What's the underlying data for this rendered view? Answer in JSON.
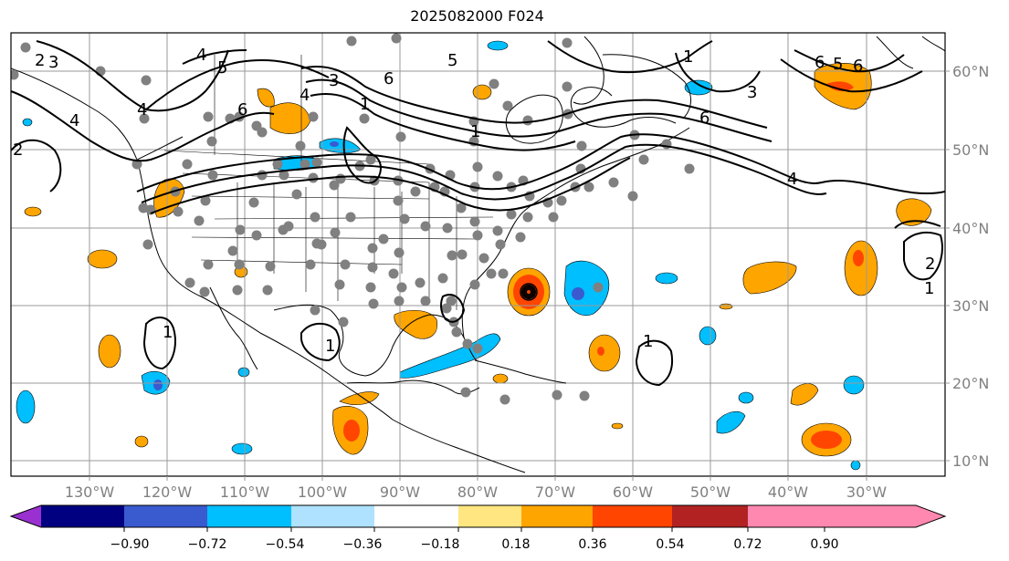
{
  "map": {
    "title": "2025082000 F024",
    "longitude_labels": [
      "130°W",
      "120°W",
      "110°W",
      "100°W",
      "90°W",
      "80°W",
      "70°W",
      "60°W",
      "50°W",
      "40°W",
      "30°W"
    ],
    "latitude_labels": [
      "60°N",
      "50°N",
      "40°N",
      "30°N",
      "20°N",
      "10°N"
    ],
    "contour_labels": [
      "2",
      "3",
      "4",
      "5",
      "6",
      "1",
      "4",
      "3",
      "1",
      "6",
      "5",
      "6",
      "3",
      "6",
      "1",
      "4",
      "1",
      "2",
      "1",
      "6",
      "5",
      "4",
      "4",
      "1",
      "1",
      "2"
    ]
  },
  "colorbar": {
    "tick_labels": [
      "−0.90",
      "−0.72",
      "−0.54",
      "−0.36",
      "−0.18",
      "0.18",
      "0.36",
      "0.54",
      "0.72",
      "0.90"
    ],
    "colors": [
      "#9b30d0",
      "#000080",
      "#3a5ad0",
      "#00bfff",
      "#aee2ff",
      "#ffffff",
      "#ffe680",
      "#ffa500",
      "#ff4500",
      "#b22222",
      "#ff88b0"
    ]
  }
}
